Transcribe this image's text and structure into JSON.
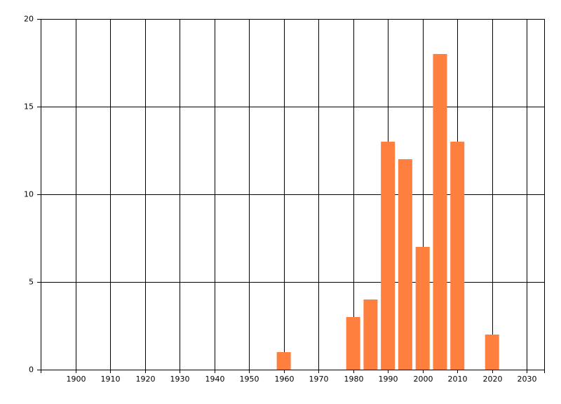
{
  "chart_data": {
    "type": "bar",
    "x": [
      1960,
      1980,
      1985,
      1990,
      1995,
      2000,
      2005,
      2010,
      2020
    ],
    "values": [
      1,
      3,
      4,
      13,
      12,
      7,
      18,
      13,
      2
    ],
    "color": "#ff7f3f",
    "xlim": [
      1890,
      2035
    ],
    "xticks": [
      1900,
      1910,
      1920,
      1930,
      1940,
      1950,
      1960,
      1970,
      1980,
      1990,
      2000,
      2010,
      2020,
      2030
    ],
    "ylim": [
      0,
      20
    ],
    "yticks": [
      0,
      5,
      10,
      15,
      20
    ],
    "grid": true
  }
}
